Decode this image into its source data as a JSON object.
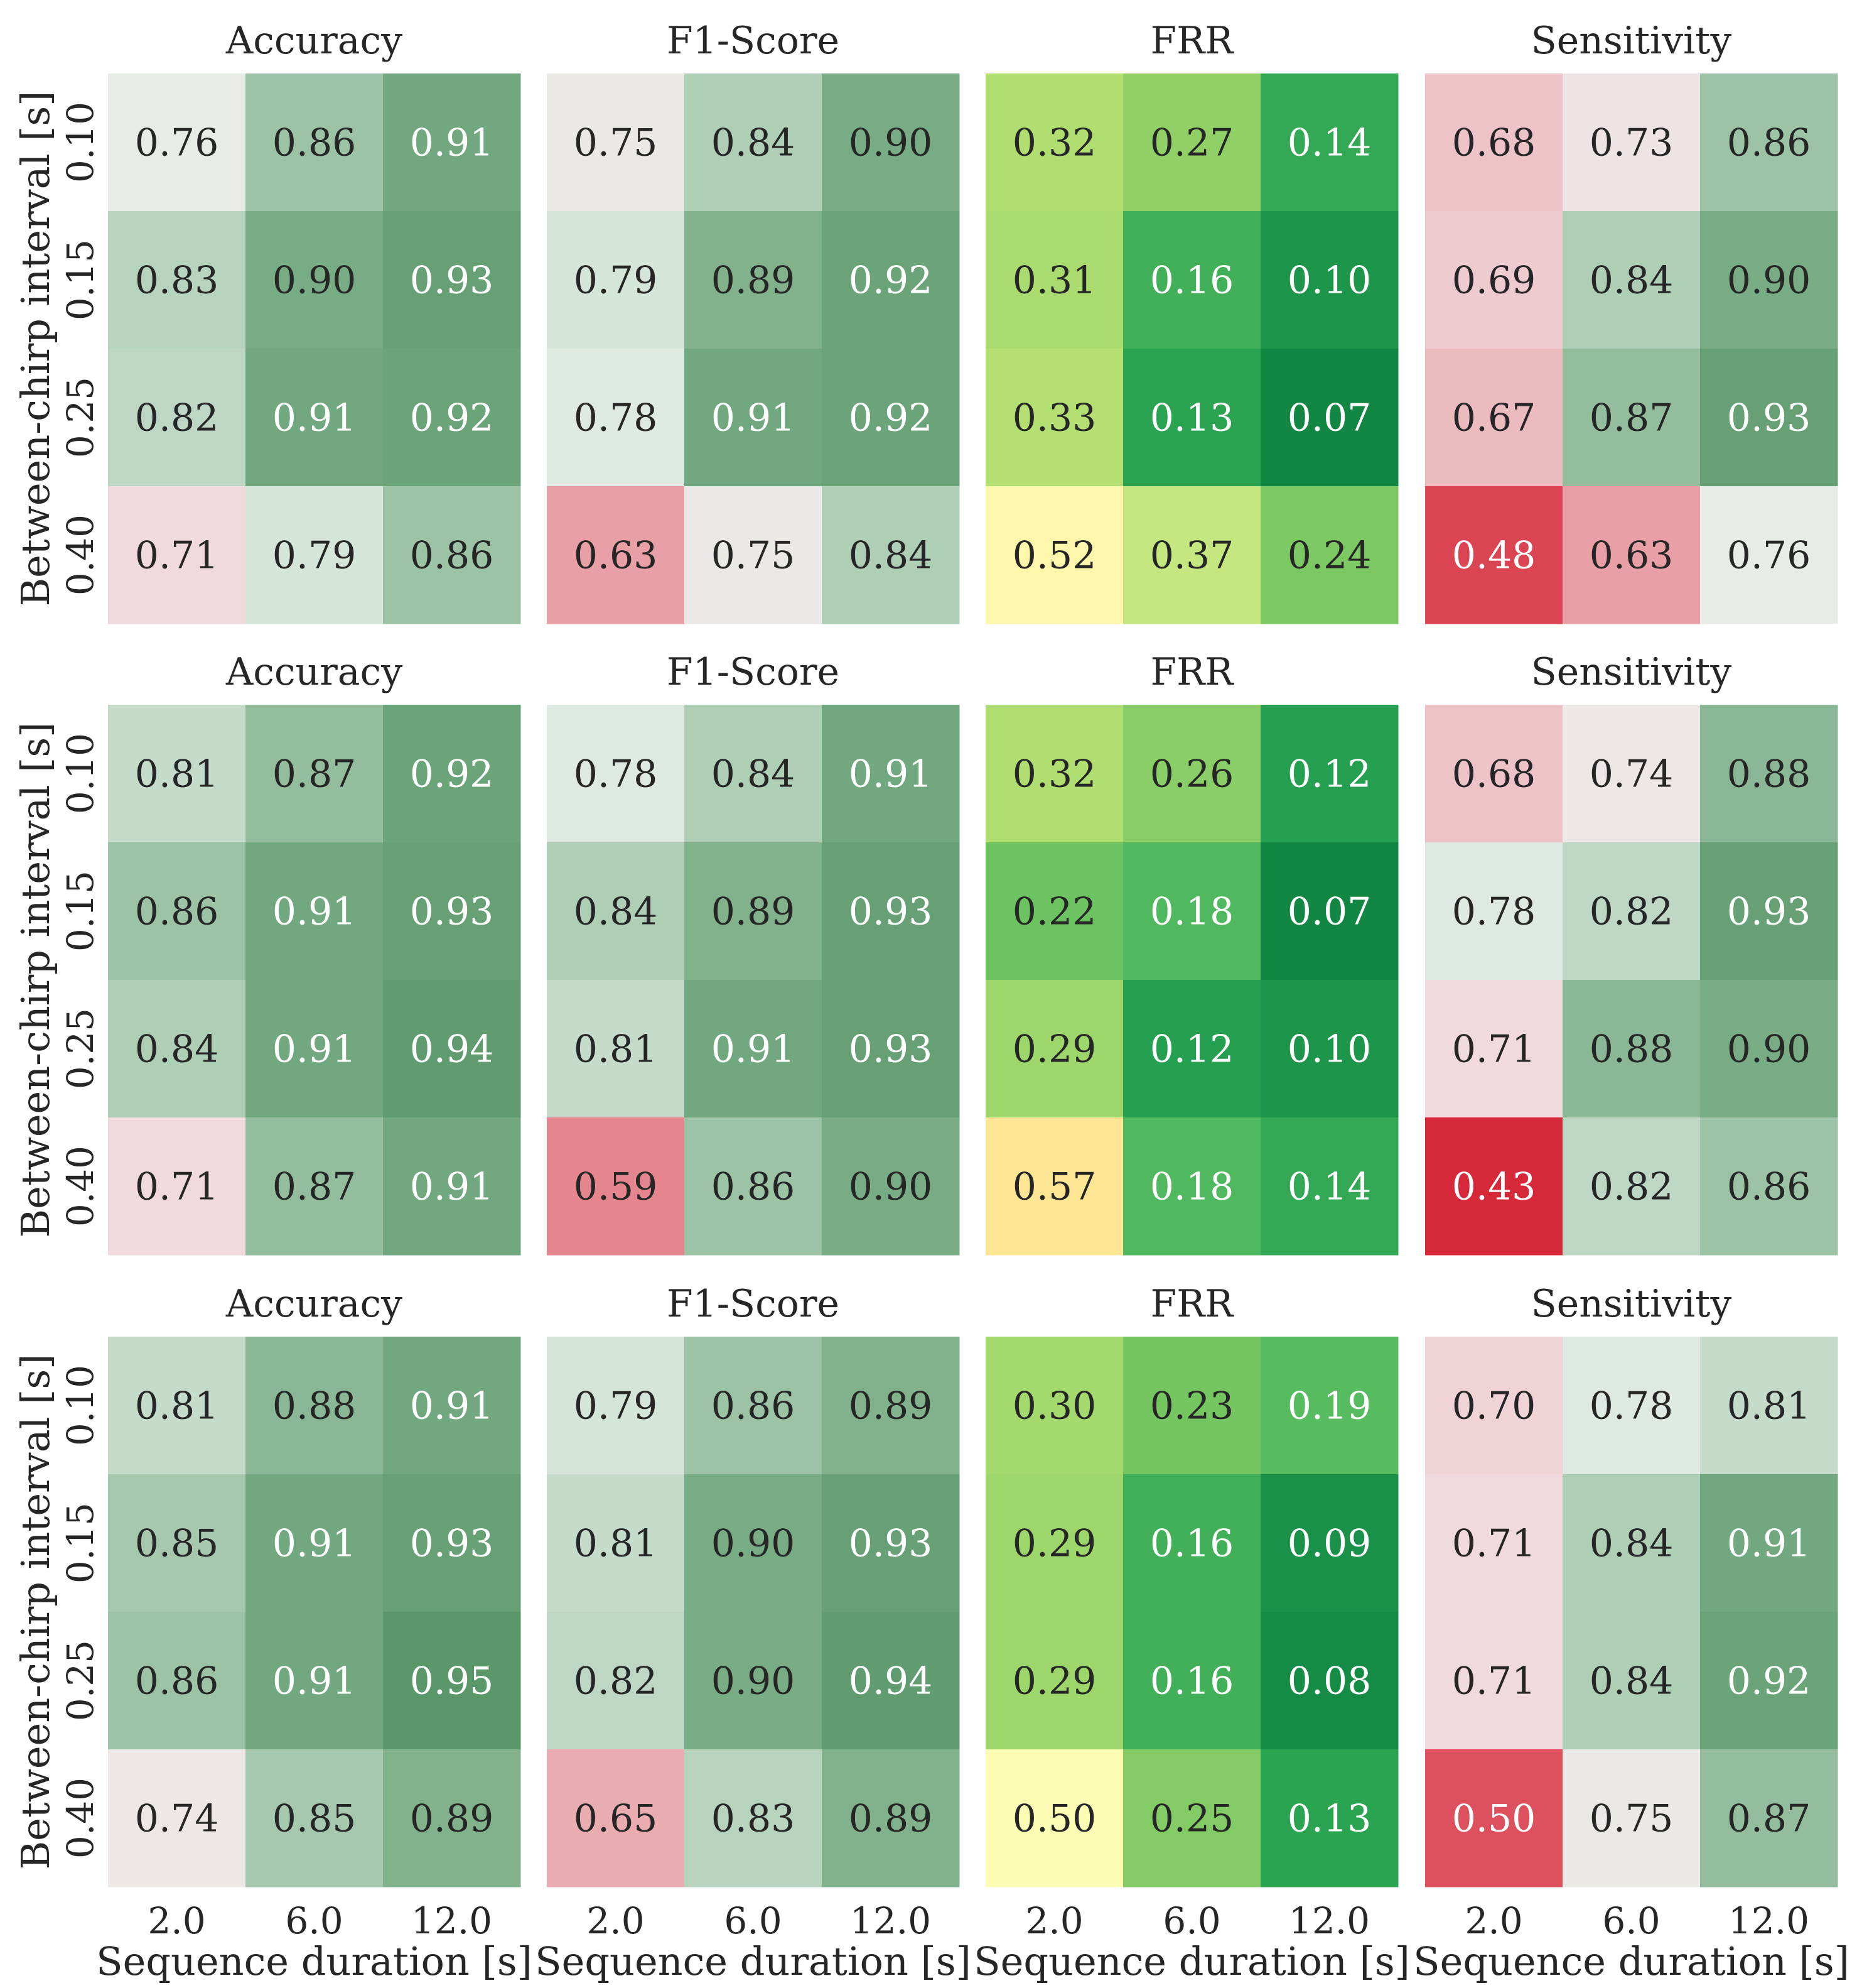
{
  "chart_data": {
    "type": "heatmap",
    "xlabel": "Sequence duration [s]",
    "ylabel": "Between-chirp interval [s]",
    "x_categories": [
      "2.0",
      "6.0",
      "12.0"
    ],
    "y_categories": [
      "0.10",
      "0.15",
      "0.25",
      "0.40"
    ],
    "metrics": [
      "Accuracy",
      "F1-Score",
      "FRR",
      "Sensitivity"
    ],
    "colormaps": {
      "Accuracy": "red-white-green",
      "F1-Score": "red-white-green",
      "Sensitivity": "red-white-green",
      "FRR": "green-yellow (reversed)"
    },
    "value_range": [
      0.0,
      1.0
    ],
    "rows": [
      {
        "Accuracy": [
          [
            0.76,
            0.86,
            0.91
          ],
          [
            0.83,
            0.9,
            0.93
          ],
          [
            0.82,
            0.91,
            0.92
          ],
          [
            0.71,
            0.79,
            0.86
          ]
        ],
        "F1-Score": [
          [
            0.75,
            0.84,
            0.9
          ],
          [
            0.79,
            0.89,
            0.92
          ],
          [
            0.78,
            0.91,
            0.92
          ],
          [
            0.63,
            0.75,
            0.84
          ]
        ],
        "FRR": [
          [
            0.32,
            0.27,
            0.14
          ],
          [
            0.31,
            0.16,
            0.1
          ],
          [
            0.33,
            0.13,
            0.07
          ],
          [
            0.52,
            0.37,
            0.24
          ]
        ],
        "Sensitivity": [
          [
            0.68,
            0.73,
            0.86
          ],
          [
            0.69,
            0.84,
            0.9
          ],
          [
            0.67,
            0.87,
            0.93
          ],
          [
            0.48,
            0.63,
            0.76
          ]
        ]
      },
      {
        "Accuracy": [
          [
            0.81,
            0.87,
            0.92
          ],
          [
            0.86,
            0.91,
            0.93
          ],
          [
            0.84,
            0.91,
            0.94
          ],
          [
            0.71,
            0.87,
            0.91
          ]
        ],
        "F1-Score": [
          [
            0.78,
            0.84,
            0.91
          ],
          [
            0.84,
            0.89,
            0.93
          ],
          [
            0.81,
            0.91,
            0.93
          ],
          [
            0.59,
            0.86,
            0.9
          ]
        ],
        "FRR": [
          [
            0.32,
            0.26,
            0.12
          ],
          [
            0.22,
            0.18,
            0.07
          ],
          [
            0.29,
            0.12,
            0.1
          ],
          [
            0.57,
            0.18,
            0.14
          ]
        ],
        "Sensitivity": [
          [
            0.68,
            0.74,
            0.88
          ],
          [
            0.78,
            0.82,
            0.93
          ],
          [
            0.71,
            0.88,
            0.9
          ],
          [
            0.43,
            0.82,
            0.86
          ]
        ]
      },
      {
        "Accuracy": [
          [
            0.81,
            0.88,
            0.91
          ],
          [
            0.85,
            0.91,
            0.93
          ],
          [
            0.86,
            0.91,
            0.95
          ],
          [
            0.74,
            0.85,
            0.89
          ]
        ],
        "F1-Score": [
          [
            0.79,
            0.86,
            0.89
          ],
          [
            0.81,
            0.9,
            0.93
          ],
          [
            0.82,
            0.9,
            0.94
          ],
          [
            0.65,
            0.83,
            0.89
          ]
        ],
        "FRR": [
          [
            0.3,
            0.23,
            0.19
          ],
          [
            0.29,
            0.16,
            0.09
          ],
          [
            0.29,
            0.16,
            0.08
          ],
          [
            0.5,
            0.25,
            0.13
          ]
        ],
        "Sensitivity": [
          [
            0.7,
            0.78,
            0.81
          ],
          [
            0.71,
            0.84,
            0.91
          ],
          [
            0.71,
            0.84,
            0.92
          ],
          [
            0.5,
            0.75,
            0.87
          ]
        ]
      }
    ]
  }
}
